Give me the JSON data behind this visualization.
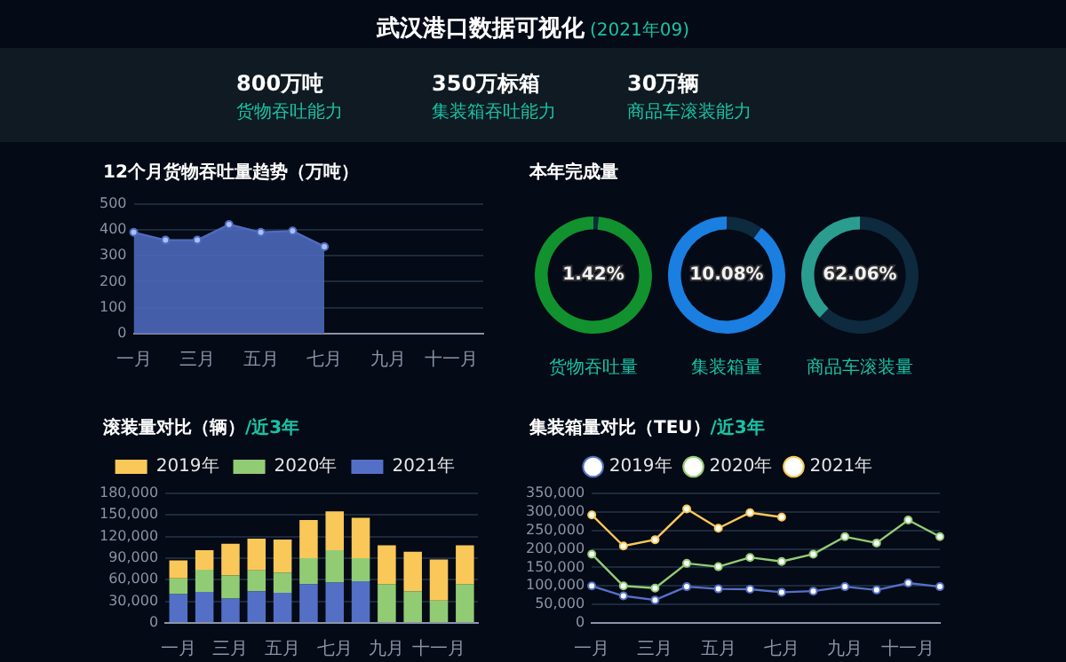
{
  "chart_data": [
    {
      "type": "other",
      "title": "武汉港口数据可视化",
      "subtitle": "(2021年09)",
      "annotations": [
        "800万吨",
        "货物吞吐能力",
        "350万标箱",
        "集装箱吞吐能力",
        "30万辆",
        "商品车滚装能力"
      ]
    },
    {
      "type": "area",
      "title": "12个月货物吞吐量趋势（万吨）",
      "categories": [
        "一月",
        null,
        "三月",
        null,
        "五月",
        null,
        "七月",
        null,
        "九月",
        null,
        "十一月",
        null
      ],
      "series": [
        {
          "color": "#4f6bc0",
          "values": [
            390,
            360,
            360,
            420,
            390,
            395,
            335,
            null,
            null,
            null,
            null,
            null
          ]
        }
      ],
      "ylim": [
        0,
        500
      ],
      "yticks": [
        0,
        100,
        200,
        300,
        400,
        500
      ],
      "grid": "y",
      "marker": "circle",
      "legend": false
    },
    {
      "type": "donut",
      "title": "本年完成量",
      "categories": [
        null,
        null
      ],
      "values": [
        1.42,
        98.58
      ],
      "colors": [
        "#0d2a3e",
        "#11922e"
      ],
      "annotations": [
        "1.42%",
        "货物吞吐量"
      ]
    },
    {
      "type": "donut",
      "categories": [
        null,
        null
      ],
      "values": [
        10.08,
        89.92
      ],
      "colors": [
        "#0d2a3e",
        "#1a7fe0"
      ],
      "annotations": [
        "10.08%",
        "集装箱量"
      ]
    },
    {
      "type": "donut",
      "categories": [
        null,
        null
      ],
      "values": [
        62.06,
        37.94
      ],
      "colors": [
        "#0d2a3e",
        "#2a9d8f"
      ],
      "annotations": [
        "62.06%",
        "商品车滚装量"
      ]
    },
    {
      "type": "bar",
      "title": "滚装量对比（辆）",
      "subtitle": "/近3年",
      "stacked": true,
      "categories": [
        "一月",
        null,
        "三月",
        null,
        "五月",
        null,
        "七月",
        null,
        "九月",
        null,
        "十一月",
        null
      ],
      "series": [
        {
          "name": "2021年",
          "color": "#5470c6",
          "values": [
            40000,
            43000,
            34000,
            44000,
            42000,
            54000,
            56000,
            58000,
            null,
            null,
            null,
            null
          ]
        },
        {
          "name": "2020年",
          "color": "#91cc75",
          "values": [
            22000,
            31000,
            32000,
            29000,
            28000,
            36000,
            45000,
            32000,
            54000,
            44000,
            31000,
            54000
          ]
        },
        {
          "name": "2019年",
          "color": "#fac858",
          "values": [
            25000,
            27000,
            44000,
            44000,
            46000,
            53000,
            54000,
            56000,
            54000,
            55000,
            57000,
            54000
          ]
        }
      ],
      "ylim": [
        0,
        180000
      ],
      "yticks": [
        0,
        {
          "value": 30000,
          "label": "30,000"
        },
        {
          "value": 60000,
          "label": "60,000"
        },
        {
          "value": 90000,
          "label": "90,000"
        },
        {
          "value": 120000,
          "label": "120,000"
        },
        {
          "value": 150000,
          "label": "150,000"
        },
        {
          "value": 180000,
          "label": "180,000"
        }
      ],
      "grid": "y",
      "legend": "top"
    },
    {
      "type": "line",
      "title": "集装箱量对比（TEU）",
      "subtitle": "/近3年",
      "categories": [
        "一月",
        null,
        "三月",
        null,
        "五月",
        null,
        "七月",
        null,
        "九月",
        null,
        "十一月",
        null
      ],
      "series": [
        {
          "name": "2019年",
          "color": "#5470c6",
          "values": [
            100000,
            73000,
            62000,
            98000,
            92000,
            91000,
            83000,
            86000,
            98000,
            89000,
            108000,
            98000
          ]
        },
        {
          "name": "2020年",
          "color": "#91cc75",
          "values": [
            186000,
            100000,
            94000,
            161000,
            152000,
            177000,
            166000,
            186000,
            233000,
            216000,
            278000,
            233000
          ]
        },
        {
          "name": "2021年",
          "color": "#fac858",
          "values": [
            292000,
            208000,
            225000,
            308000,
            256000,
            298000,
            286000,
            null,
            null,
            null,
            null,
            null
          ]
        }
      ],
      "ylim": [
        0,
        350000
      ],
      "yticks": [
        0,
        {
          "value": 50000,
          "label": "50,000"
        },
        {
          "value": 100000,
          "label": "100,000"
        },
        {
          "value": 150000,
          "label": "150,000"
        },
        {
          "value": 200000,
          "label": "200,000"
        },
        {
          "value": 250000,
          "label": "250,000"
        },
        {
          "value": 300000,
          "label": "300,000"
        },
        {
          "value": 350000,
          "label": "350,000"
        }
      ],
      "grid": "y",
      "legend": "top",
      "marker": "circle"
    }
  ]
}
